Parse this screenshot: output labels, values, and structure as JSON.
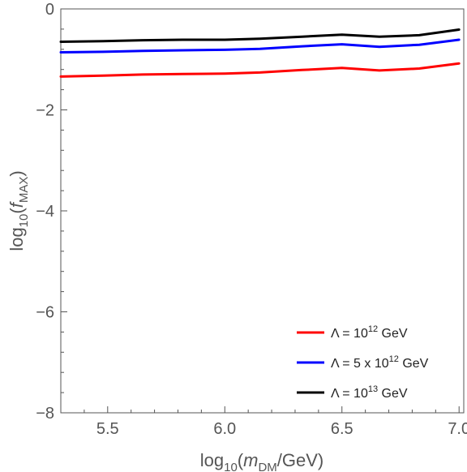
{
  "chart_data": {
    "type": "line",
    "xlabel": {
      "base": "log",
      "sub": "10",
      "open": "(",
      "var": "m",
      "var_sub": "DM",
      "rest": "/GeV)"
    },
    "ylabel": {
      "base": "log",
      "sub": "10",
      "open": "(",
      "var": "f",
      "var_sub": "MAX",
      "rest": ")"
    },
    "xlim": [
      5.3,
      7.02
    ],
    "ylim": [
      -8,
      0
    ],
    "x_ticks": [
      5.5,
      6.0,
      6.5,
      7.0
    ],
    "x_tick_labels": [
      "5.5",
      "6.0",
      "6.5",
      "7.0"
    ],
    "y_ticks": [
      0,
      -2,
      -4,
      -6,
      -8
    ],
    "y_tick_labels": [
      "0",
      "−2",
      "−4",
      "−6",
      "−8"
    ],
    "grid": false,
    "legend_position": "bottom-right",
    "series": [
      {
        "legend": {
          "pre": "Λ = 10",
          "sup": "12",
          "post": " GeV"
        },
        "color": "#ff0000",
        "x": [
          5.3,
          5.48,
          5.65,
          5.82,
          6.0,
          6.15,
          6.33,
          6.5,
          6.66,
          6.83,
          7.0
        ],
        "y": [
          -1.34,
          -1.32,
          -1.3,
          -1.29,
          -1.28,
          -1.26,
          -1.21,
          -1.17,
          -1.22,
          -1.18,
          -1.08
        ]
      },
      {
        "legend": {
          "pre": "Λ = 5 x 10",
          "sup": "12",
          "post": " GeV"
        },
        "color": "#0000ff",
        "x": [
          5.3,
          5.48,
          5.65,
          5.82,
          6.0,
          6.15,
          6.33,
          6.5,
          6.66,
          6.83,
          7.0
        ],
        "y": [
          -0.86,
          -0.85,
          -0.83,
          -0.82,
          -0.81,
          -0.79,
          -0.74,
          -0.7,
          -0.75,
          -0.71,
          -0.61
        ]
      },
      {
        "legend": {
          "pre": "Λ = 10",
          "sup": "13",
          "post": " GeV"
        },
        "color": "#000000",
        "x": [
          5.3,
          5.48,
          5.65,
          5.82,
          6.0,
          6.15,
          6.33,
          6.5,
          6.66,
          6.83,
          7.0
        ],
        "y": [
          -0.65,
          -0.64,
          -0.62,
          -0.61,
          -0.61,
          -0.59,
          -0.55,
          -0.51,
          -0.55,
          -0.52,
          -0.41
        ]
      }
    ]
  }
}
